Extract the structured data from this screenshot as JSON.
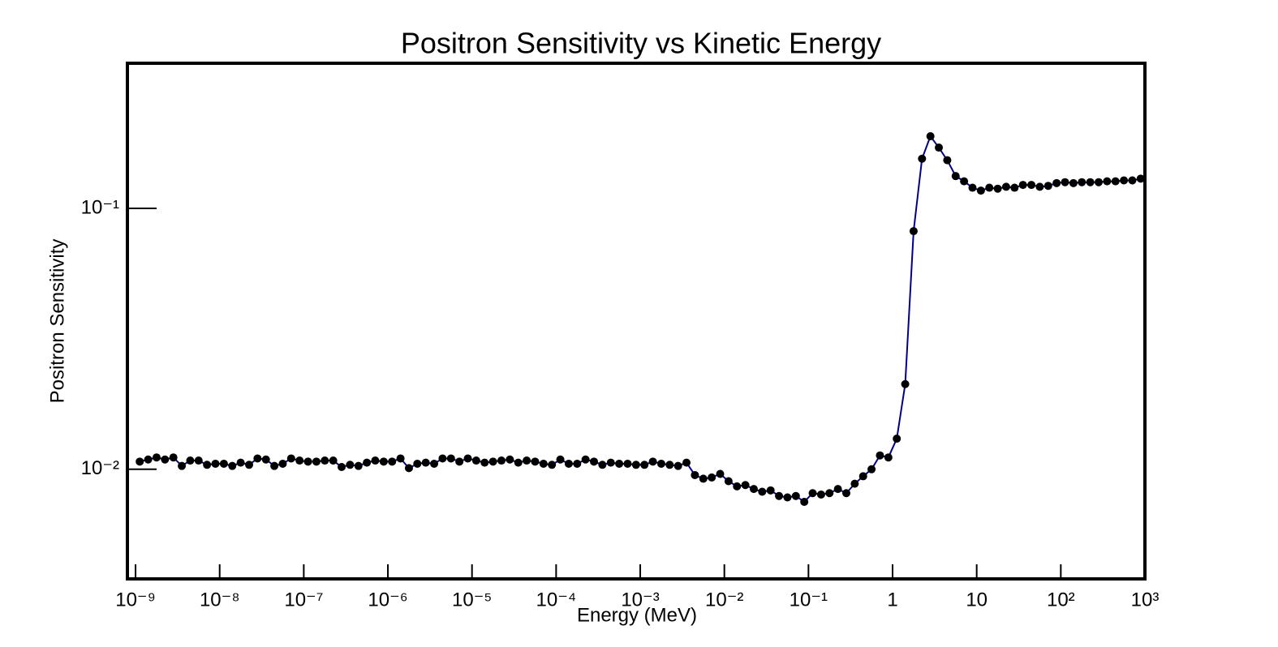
{
  "chart_data": {
    "type": "line",
    "title": "Positron Sensitivity vs Kinetic Energy",
    "x_label": "Energy (MeV)",
    "y_label": "Positron Sensitivity",
    "xlog": true,
    "ylog": true,
    "xlim": [
      8e-10,
      1000
    ],
    "ylim": [
      0.0038,
      0.36
    ],
    "xticks": [
      {
        "value": 1e-09,
        "label": "10⁻⁹"
      },
      {
        "value": 1e-08,
        "label": "10⁻⁸"
      },
      {
        "value": 1e-07,
        "label": "10⁻⁷"
      },
      {
        "value": 1e-06,
        "label": "10⁻⁶"
      },
      {
        "value": 1e-05,
        "label": "10⁻⁵"
      },
      {
        "value": 0.0001,
        "label": "10⁻⁴"
      },
      {
        "value": 0.001,
        "label": "10⁻³"
      },
      {
        "value": 0.01,
        "label": "10⁻²"
      },
      {
        "value": 0.1,
        "label": "10⁻¹"
      },
      1,
      10,
      {
        "value": 100,
        "label": "10²"
      },
      {
        "value": 1000,
        "label": "10³"
      }
    ],
    "yticks": [
      {
        "value": 0.01,
        "label": "10⁻²"
      },
      {
        "value": 0.1,
        "label": "10⁻¹"
      }
    ],
    "color": "#00008b",
    "marker_color": "#000000",
    "x": [
      1.122e-09,
      1.413e-09,
      1.778e-09,
      2.239e-09,
      2.818e-09,
      3.548e-09,
      4.467e-09,
      5.623e-09,
      7.079e-09,
      8.913e-09,
      1.122e-08,
      1.413e-08,
      1.778e-08,
      2.239e-08,
      2.818e-08,
      3.548e-08,
      4.467e-08,
      5.623e-08,
      7.079e-08,
      8.913e-08,
      1.122e-07,
      1.413e-07,
      1.778e-07,
      2.239e-07,
      2.818e-07,
      3.548e-07,
      4.467e-07,
      5.623e-07,
      7.079e-07,
      8.913e-07,
      1.122e-06,
      1.413e-06,
      1.778e-06,
      2.239e-06,
      2.818e-06,
      3.548e-06,
      4.467e-06,
      5.623e-06,
      7.079e-06,
      8.913e-06,
      1.122e-05,
      1.413e-05,
      1.778e-05,
      2.239e-05,
      2.818e-05,
      3.548e-05,
      4.467e-05,
      5.623e-05,
      7.079e-05,
      8.913e-05,
      0.0001122,
      0.0001413,
      0.0001778,
      0.0002239,
      0.0002818,
      0.0003548,
      0.0004467,
      0.0005623,
      0.0007079,
      0.0008913,
      0.001122,
      0.001413,
      0.001778,
      0.002239,
      0.002818,
      0.003548,
      0.004467,
      0.005623,
      0.007079,
      0.008913,
      0.01122,
      0.01413,
      0.01778,
      0.02239,
      0.02818,
      0.03548,
      0.04467,
      0.05623,
      0.07079,
      0.08913,
      0.1122,
      0.1413,
      0.1778,
      0.2239,
      0.2818,
      0.3548,
      0.4467,
      0.5623,
      0.7079,
      0.8913,
      1.122,
      1.413,
      1.778,
      2.239,
      2.818,
      3.548,
      4.467,
      5.623,
      7.079,
      8.913,
      11.22,
      14.13,
      17.78,
      22.39,
      28.18,
      35.48,
      44.67,
      56.23,
      70.79,
      89.13,
      112.2,
      141.3,
      177.8,
      223.9,
      281.8,
      354.8,
      446.7,
      562.3,
      707.9,
      891.3
    ],
    "values": [
      0.0107,
      0.0109,
      0.0111,
      0.0109,
      0.0111,
      0.0103,
      0.0108,
      0.0108,
      0.0104,
      0.0105,
      0.0105,
      0.0103,
      0.0106,
      0.0104,
      0.011,
      0.0109,
      0.0103,
      0.0105,
      0.011,
      0.0108,
      0.0107,
      0.0107,
      0.0108,
      0.0108,
      0.0102,
      0.0104,
      0.0103,
      0.0106,
      0.0108,
      0.0107,
      0.0107,
      0.011,
      0.0101,
      0.0105,
      0.0106,
      0.0105,
      0.011,
      0.011,
      0.0107,
      0.011,
      0.0108,
      0.0106,
      0.0107,
      0.0108,
      0.0109,
      0.0106,
      0.0108,
      0.0107,
      0.0105,
      0.0104,
      0.0109,
      0.0105,
      0.0105,
      0.0109,
      0.0107,
      0.0104,
      0.0106,
      0.0105,
      0.0105,
      0.0104,
      0.0104,
      0.0107,
      0.0105,
      0.0104,
      0.0103,
      0.0106,
      0.0095,
      0.0092,
      0.0093,
      0.0096,
      0.009,
      0.0086,
      0.0087,
      0.0084,
      0.0082,
      0.0083,
      0.0079,
      0.0078,
      0.0079,
      0.0075,
      0.0081,
      0.008,
      0.0081,
      0.0084,
      0.0081,
      0.0088,
      0.0094,
      0.01,
      0.0113,
      0.0111,
      0.0131,
      0.0212,
      0.0818,
      0.155,
      0.189,
      0.171,
      0.153,
      0.133,
      0.127,
      0.12,
      0.117,
      0.12,
      0.119,
      0.121,
      0.12,
      0.123,
      0.123,
      0.121,
      0.122,
      0.125,
      0.126,
      0.125,
      0.126,
      0.126,
      0.126,
      0.127,
      0.127,
      0.128,
      0.128,
      0.13
    ]
  }
}
